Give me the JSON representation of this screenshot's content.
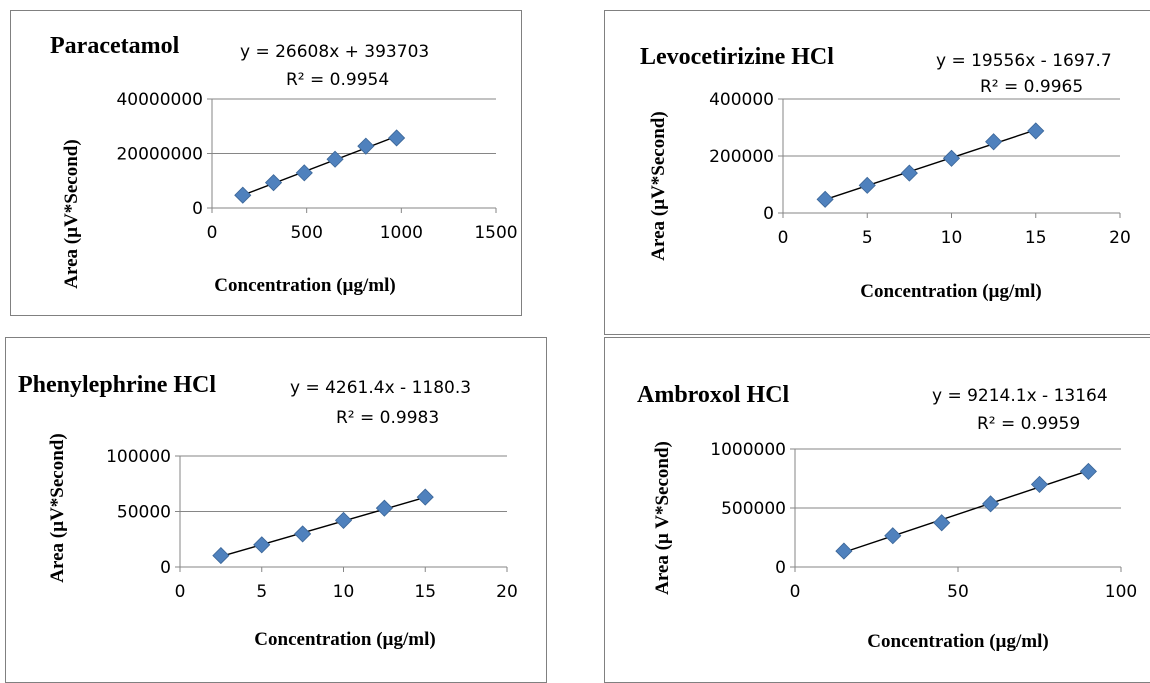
{
  "chart_data": [
    {
      "type": "scatter",
      "title": "Paracetamol",
      "xlabel": "Concentration (µg/ml)",
      "ylabel": "Area (µV*Second)",
      "xlim": [
        0,
        1500
      ],
      "ylim": [
        0,
        40000000
      ],
      "xticks": [
        "0",
        "500",
        "1000",
        "1500"
      ],
      "yticks": [
        "0",
        "20000000",
        "40000000"
      ],
      "x": [
        162.5,
        325,
        487.5,
        650,
        812.5,
        975
      ],
      "y": [
        4700000,
        9300000,
        12900000,
        17900000,
        22700000,
        25700000
      ],
      "marker_color": "#4F81BD",
      "trendline": {
        "slope": 26608,
        "intercept": 393703
      },
      "equation": "y = 26608x + 393703",
      "r_squared": "R² = 0.9954",
      "grid": "horizontal"
    },
    {
      "type": "scatter",
      "title": "Levocetirizine HCl",
      "xlabel": "Concentration (µg/ml)",
      "ylabel": "Area (µV*Second)",
      "xlim": [
        0,
        20
      ],
      "ylim": [
        0,
        400000
      ],
      "xticks": [
        "0",
        "5",
        "10",
        "15",
        "20"
      ],
      "yticks": [
        "0",
        "200000",
        "400000"
      ],
      "x": [
        2.5,
        5,
        7.5,
        10,
        12.5,
        15
      ],
      "y": [
        48000,
        97000,
        140000,
        192000,
        250000,
        288000
      ],
      "marker_color": "#4F81BD",
      "trendline": {
        "slope": 19556,
        "intercept": -1697.7
      },
      "equation": "y = 19556x - 1697.7",
      "r_squared": "R² = 0.9965",
      "grid": "horizontal"
    },
    {
      "type": "scatter",
      "title": "Phenylephrine HCl",
      "xlabel": "Concentration (µg/ml)",
      "ylabel": "Area (µV*Second)",
      "xlim": [
        0,
        20
      ],
      "ylim": [
        0,
        100000
      ],
      "xticks": [
        "0",
        "5",
        "10",
        "15",
        "20"
      ],
      "yticks": [
        "0",
        "50000",
        "100000"
      ],
      "x": [
        2.5,
        5,
        7.5,
        10,
        12.5,
        15
      ],
      "y": [
        10300,
        20000,
        29800,
        42000,
        53000,
        63000
      ],
      "marker_color": "#4F81BD",
      "trendline": {
        "slope": 4261.4,
        "intercept": -1180.3
      },
      "equation": "y = 4261.4x - 1180.3",
      "r_squared": "R² = 0.9983",
      "grid": "horizontal"
    },
    {
      "type": "scatter",
      "title": "Ambroxol HCl",
      "xlabel": "Concentration (µg/ml)",
      "ylabel": "Area (µ V*Second)",
      "xlim": [
        0,
        100
      ],
      "ylim": [
        0,
        1000000
      ],
      "xticks": [
        "0",
        "50",
        "100"
      ],
      "yticks": [
        "0",
        "500000",
        "1000000"
      ],
      "x": [
        15,
        30,
        45,
        60,
        75,
        90
      ],
      "y": [
        135000,
        265000,
        375000,
        535000,
        700000,
        810000
      ],
      "marker_color": "#4F81BD",
      "trendline": {
        "slope": 9214.1,
        "intercept": -13164
      },
      "equation": "y = 9214.1x - 13164",
      "r_squared": "R² = 0.9959",
      "grid": "horizontal"
    }
  ]
}
